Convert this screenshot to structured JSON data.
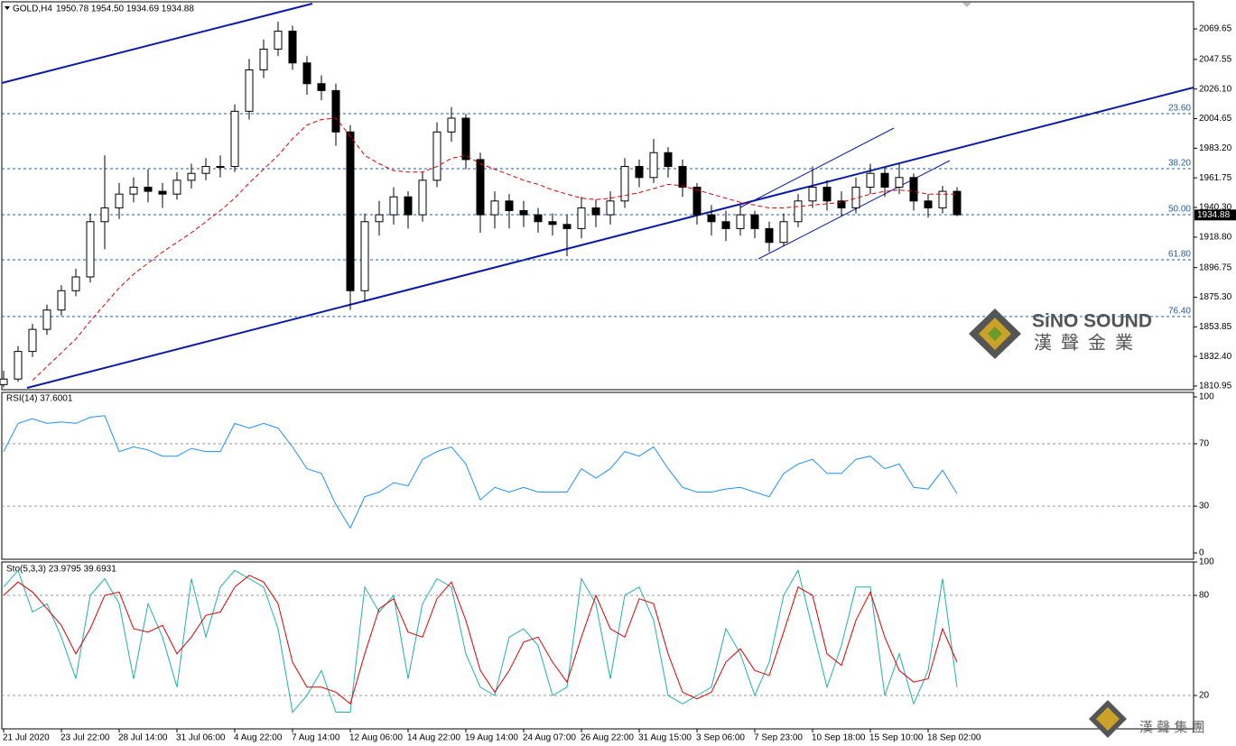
{
  "chart_data": [
    {
      "type": "candlestick",
      "title": "GOLD,H4",
      "subtitle": "1950.78 1954.50 1934.69 1934.88",
      "categories": [
        "21 Jul 2020",
        null,
        null,
        null,
        "23 Jul 22:00",
        null,
        null,
        null,
        "28 Jul 14:00",
        null,
        null,
        null,
        "31 Jul 06:00",
        null,
        null,
        null,
        "4 Aug 22:00",
        null,
        null,
        null,
        "7 Aug 14:00",
        null,
        null,
        null,
        "12 Aug 06:00",
        null,
        null,
        null,
        "14 Aug 22:00",
        null,
        null,
        null,
        "19 Aug 14:00",
        null,
        null,
        null,
        "24 Aug 07:00",
        null,
        null,
        null,
        "26 Aug 22:00",
        null,
        null,
        null,
        "31 Aug 15:00",
        null,
        null,
        null,
        "3 Sep 06:00",
        null,
        null,
        null,
        "7 Sep 23:00",
        null,
        null,
        null,
        "10 Sep 18:00",
        null,
        null,
        null,
        "15 Sep 10:00",
        null,
        null,
        null,
        "18 Sep 02:00",
        null,
        null
      ],
      "open": [
        1812,
        1816,
        1836,
        1852,
        1866,
        1880,
        1890,
        1930,
        1940,
        1950,
        1955,
        1952,
        1950,
        1960,
        1965,
        1970,
        1970,
        2010,
        2040,
        2055,
        2068,
        2045,
        2030,
        2025,
        1995,
        1880,
        1930,
        1935,
        1948,
        1935,
        1960,
        1995,
        2005,
        1975,
        1935,
        1945,
        1938,
        1935,
        1930,
        1928,
        1925,
        1940,
        1935,
        1945,
        1970,
        1962,
        1980,
        1970,
        1955,
        1935,
        1930,
        1925,
        1935,
        1925,
        1915,
        1930,
        1945,
        1955,
        1945,
        1940,
        1955,
        1965,
        1955,
        1962,
        1945,
        1940,
        1952
      ],
      "high": [
        1822,
        1840,
        1856,
        1870,
        1884,
        1896,
        1936,
        1978,
        1958,
        1962,
        1968,
        1958,
        1966,
        1972,
        1976,
        1978,
        2015,
        2048,
        2062,
        2075,
        2072,
        2050,
        2036,
        2030,
        2000,
        1936,
        1945,
        1955,
        1952,
        1966,
        2002,
        2013,
        2008,
        1980,
        1952,
        1950,
        1945,
        1940,
        1936,
        1935,
        1948,
        1946,
        1952,
        1976,
        1975,
        1990,
        1984,
        1975,
        1958,
        1942,
        1938,
        1942,
        1938,
        1930,
        1936,
        1950,
        1970,
        1960,
        1952,
        1962,
        1972,
        1970,
        1972,
        1965,
        1950,
        1956,
        1955
      ],
      "low": [
        1810,
        1814,
        1832,
        1848,
        1862,
        1876,
        1886,
        1910,
        1932,
        1944,
        1944,
        1940,
        1946,
        1954,
        1960,
        1962,
        1966,
        2004,
        2034,
        2050,
        2040,
        2022,
        2018,
        1985,
        1866,
        1872,
        1920,
        1928,
        1925,
        1930,
        1955,
        1988,
        1968,
        1922,
        1925,
        1925,
        1926,
        1922,
        1920,
        1905,
        1918,
        1926,
        1928,
        1940,
        1955,
        1958,
        1962,
        1948,
        1928,
        1920,
        1916,
        1920,
        1918,
        1908,
        1912,
        1926,
        1940,
        1938,
        1934,
        1936,
        1950,
        1948,
        1950,
        1938,
        1933,
        1936,
        1934
      ],
      "close": [
        1816,
        1836,
        1852,
        1866,
        1880,
        1890,
        1930,
        1940,
        1950,
        1955,
        1952,
        1950,
        1960,
        1965,
        1970,
        1970,
        2010,
        2040,
        2055,
        2068,
        2045,
        2030,
        2025,
        1995,
        1880,
        1930,
        1935,
        1948,
        1935,
        1960,
        1995,
        2005,
        1975,
        1935,
        1945,
        1938,
        1935,
        1930,
        1928,
        1925,
        1940,
        1935,
        1945,
        1970,
        1962,
        1980,
        1970,
        1955,
        1935,
        1930,
        1925,
        1935,
        1925,
        1915,
        1930,
        1945,
        1955,
        1945,
        1940,
        1955,
        1965,
        1955,
        1962,
        1945,
        1940,
        1952,
        1935
      ],
      "moving_average": [
        null,
        null,
        1815,
        1825,
        1835,
        1845,
        1858,
        1870,
        1882,
        1892,
        1900,
        1908,
        1915,
        1922,
        1930,
        1938,
        1947,
        1958,
        1968,
        1978,
        1990,
        2000,
        2004,
        2005,
        1992,
        1978,
        1972,
        1967,
        1966,
        1966,
        1970,
        1976,
        1978,
        1972,
        1968,
        1964,
        1960,
        1957,
        1953,
        1950,
        1947,
        1946,
        1947,
        1949,
        1951,
        1954,
        1957,
        1956,
        1953,
        1950,
        1947,
        1944,
        1942,
        1940,
        1940,
        1941,
        1942,
        1943,
        1944,
        1947,
        1950,
        1952,
        1953,
        1952,
        1950,
        1950,
        1950
      ],
      "ma_color": "#e00000",
      "up_color": "#ffffff",
      "down_color": "#000000",
      "ylim": [
        1808.3,
        2090.6
      ],
      "yticks": [
        2069.65,
        2047.55,
        {
          "value": 2026.1,
          "label": "2026.10"
        },
        2004.65,
        {
          "value": 1983.2,
          "label": "1983.20"
        },
        1961.75,
        {
          "value": 1940.3,
          "label": "1940.30"
        },
        {
          "value": 1918.8,
          "label": "1918.80"
        },
        1896.75,
        {
          "value": 1875.3,
          "label": "1875.30"
        },
        1853.85,
        {
          "value": 1832.4,
          "label": "1832.40"
        },
        1810.95
      ],
      "levels": [
        {
          "value": 2008.25,
          "label": "23.60"
        },
        {
          "value": 1968.4,
          "label": "38.20"
        },
        {
          "value": 1935.1,
          "label": "50.00"
        },
        {
          "value": 1902.4,
          "label": "61.80"
        },
        {
          "value": 1861.3,
          "label": "76.40"
        }
      ],
      "last_price": 1934.88,
      "grid": false
    },
    {
      "type": "line",
      "title": "RSI(14) 37.6001",
      "ylim": [
        0,
        100
      ],
      "yticks": [
        100,
        70,
        30,
        0
      ],
      "grid": true,
      "series": [
        {
          "color": "#1e90ff",
          "values": [
            65,
            83,
            86,
            83,
            84,
            83,
            87,
            88,
            65,
            68,
            66,
            62,
            62,
            67,
            65,
            65,
            83,
            80,
            83,
            80,
            68,
            54,
            51,
            31,
            16,
            36,
            39,
            45,
            43,
            60,
            65,
            68,
            57,
            34,
            42,
            39,
            42,
            39,
            39,
            39,
            54,
            48,
            54,
            65,
            62,
            68,
            54,
            42,
            39,
            39,
            41,
            42,
            39,
            36,
            51,
            57,
            60,
            51,
            51,
            60,
            62,
            54,
            57,
            42,
            41,
            53,
            38
          ]
        }
      ]
    },
    {
      "type": "line",
      "title": "Sto(5,3,3) 23.9795 39.6931",
      "ylim": [
        0,
        100
      ],
      "yticks": [
        100,
        80,
        20
      ],
      "grid": true,
      "series": [
        {
          "color": "#20b2aa",
          "values": [
            85,
            95,
            70,
            75,
            55,
            30,
            80,
            90,
            75,
            30,
            75,
            55,
            25,
            90,
            55,
            85,
            95,
            90,
            85,
            60,
            10,
            20,
            35,
            10,
            10,
            85,
            70,
            80,
            30,
            75,
            90,
            85,
            45,
            25,
            20,
            55,
            60,
            50,
            20,
            25,
            90,
            75,
            30,
            80,
            85,
            65,
            20,
            15,
            20,
            25,
            60,
            45,
            20,
            40,
            80,
            95,
            60,
            25,
            50,
            85,
            85,
            20,
            45,
            15,
            35,
            90,
            25
          ]
        },
        {
          "color": "#e00000",
          "values": [
            80,
            88,
            82,
            72,
            62,
            45,
            60,
            80,
            82,
            60,
            58,
            62,
            45,
            55,
            68,
            70,
            85,
            92,
            88,
            75,
            40,
            25,
            25,
            22,
            15,
            45,
            72,
            78,
            58,
            55,
            78,
            88,
            65,
            35,
            22,
            35,
            52,
            55,
            40,
            28,
            55,
            80,
            60,
            55,
            78,
            75,
            45,
            22,
            18,
            22,
            40,
            48,
            35,
            32,
            58,
            85,
            80,
            45,
            38,
            65,
            82,
            55,
            35,
            28,
            30,
            60,
            40
          ]
        }
      ]
    }
  ],
  "logo": {
    "name": "SiNO SOUND",
    "chinese": "漢聲金業",
    "footer": "漢 聲 集 團"
  }
}
